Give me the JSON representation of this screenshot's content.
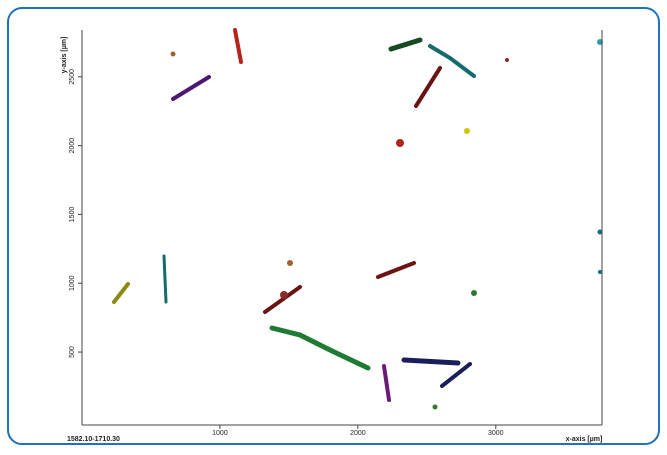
{
  "chart_data": {
    "type": "image",
    "x_label": "x-axis [µm]",
    "y_label": "y-axis [µm]",
    "corner_label": "1582.10-1710.30",
    "xlim": [
      0,
      3770
    ],
    "ylim": [
      -30,
      2840
    ],
    "xticks": [
      1000,
      2000,
      3000
    ],
    "yticks": [
      500,
      1000,
      1500,
      2000,
      2500
    ]
  }
}
